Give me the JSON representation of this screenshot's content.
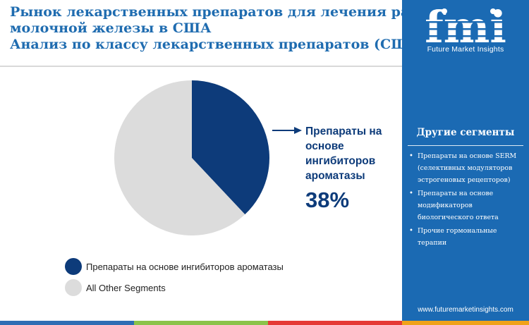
{
  "header": {
    "title_line1": "Рынок лекарственных препаратов для лечения рака",
    "title_line2": "молочной железы в США",
    "title_line3": "Анализ по классу лекарственных препаратов (США)"
  },
  "brand": {
    "logo_text": "fmi",
    "logo_subtitle": "Future Market Insights",
    "website": "www.futuremarketinsights.com"
  },
  "sidebar": {
    "title": "Другие сегменты",
    "items": [
      "Препараты на основе SERM (селективных модуляторов эстрогеновых рецепторов)",
      "Препараты на основе модификаторов биологического ответа",
      "Прочие гормональные терапии"
    ]
  },
  "callout": {
    "label": "Препараты на основе ингибиторов ароматазы",
    "value": "38%"
  },
  "chart_data": {
    "type": "pie",
    "slices": [
      {
        "name": "Препараты на основе ингибиторов ароматазы",
        "value": 38,
        "color": "#0d3b7a"
      },
      {
        "name": "All Other Segments",
        "value": 62,
        "color": "#dcdcdc"
      }
    ],
    "legend_position": "bottom-left",
    "start_angle": "12 o'clock, clockwise"
  },
  "colors": {
    "title": "#1f6cb0",
    "sidebar_bg": "#1b6ab3",
    "accent_dark": "#0d3b7a",
    "bottom_bar": [
      "#2e6db4",
      "#8bc34a",
      "#e53935",
      "#f0a21a"
    ]
  }
}
